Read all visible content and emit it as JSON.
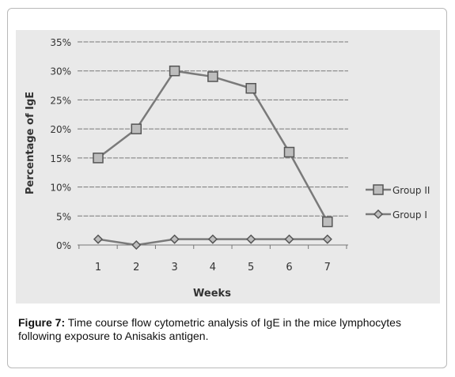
{
  "figure_caption": {
    "label": "Figure 7:",
    "text": " Time course flow cytometric analysis of IgE in the mice lymphocytes following exposure to Anisakis antigen."
  },
  "colors": {
    "panel_background": "#e9e9e9",
    "grid": "#777777",
    "series_line": "#7a7a7a",
    "marker_fill": "#bdbdbd",
    "marker_stroke": "#555555",
    "text": "#333333"
  },
  "chart_data": {
    "type": "line",
    "title": "",
    "xlabel": "Weeks",
    "ylabel": "Percentage of IgE",
    "categories": [
      "1",
      "2",
      "3",
      "4",
      "5",
      "6",
      "7"
    ],
    "ylim": [
      0,
      35
    ],
    "yticks": [
      0,
      5,
      10,
      15,
      20,
      25,
      30,
      35
    ],
    "ytick_labels": [
      "0%",
      "5%",
      "10%",
      "15%",
      "20%",
      "25%",
      "30%",
      "35%"
    ],
    "grid": true,
    "legend_position": "right",
    "series": [
      {
        "name": "Group II",
        "marker": "square",
        "values": [
          15,
          20,
          30,
          29,
          27,
          16,
          4
        ]
      },
      {
        "name": "Group I",
        "marker": "diamond",
        "values": [
          1,
          0,
          1,
          1,
          1,
          1,
          1
        ]
      }
    ]
  }
}
